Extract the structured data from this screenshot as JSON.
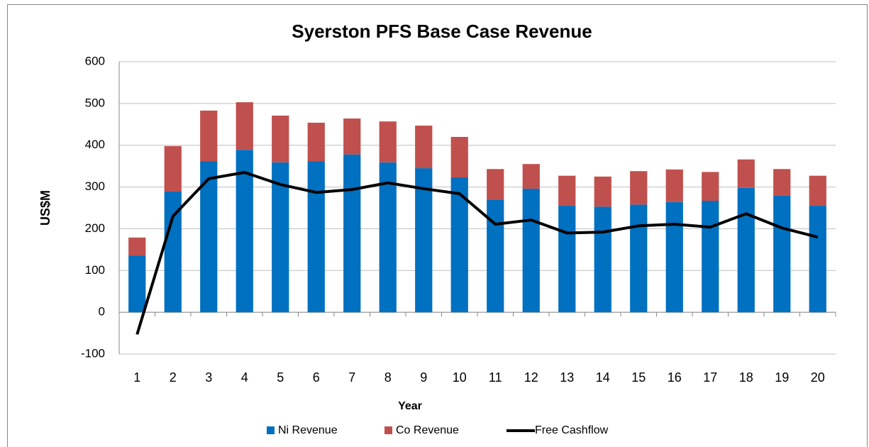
{
  "chart_data": {
    "type": "bar",
    "title": "Syerston PFS Base Case Revenue",
    "x_label": "Year",
    "y_label": "US$M",
    "categories": [
      "1",
      "2",
      "3",
      "4",
      "5",
      "6",
      "7",
      "8",
      "9",
      "10",
      "11",
      "12",
      "13",
      "14",
      "15",
      "16",
      "17",
      "18",
      "19",
      "20"
    ],
    "series": [
      {
        "name": "Ni Revenue",
        "color": "#0070c0",
        "type": "bar",
        "values": [
          136,
          289,
          362,
          389,
          359,
          362,
          378,
          359,
          345,
          323,
          270,
          296,
          255,
          253,
          258,
          264,
          267,
          298,
          279,
          255
        ]
      },
      {
        "name": "Co Revenue",
        "color": "#c0504d",
        "type": "bar",
        "values": [
          43,
          109,
          121,
          114,
          112,
          92,
          86,
          98,
          102,
          97,
          73,
          59,
          72,
          72,
          80,
          78,
          69,
          68,
          64,
          72
        ]
      },
      {
        "name": "Free Cashflow",
        "color": "#000000",
        "type": "line",
        "values": [
          -53,
          230,
          320,
          335,
          306,
          287,
          294,
          310,
          296,
          284,
          211,
          221,
          190,
          192,
          207,
          211,
          204,
          236,
          202,
          180
        ]
      }
    ],
    "ylim": [
      -100,
      600
    ],
    "yticks": [
      -100,
      0,
      100,
      200,
      300,
      400,
      500,
      600
    ],
    "grid": true,
    "stacked": true,
    "legend": "bottom"
  }
}
